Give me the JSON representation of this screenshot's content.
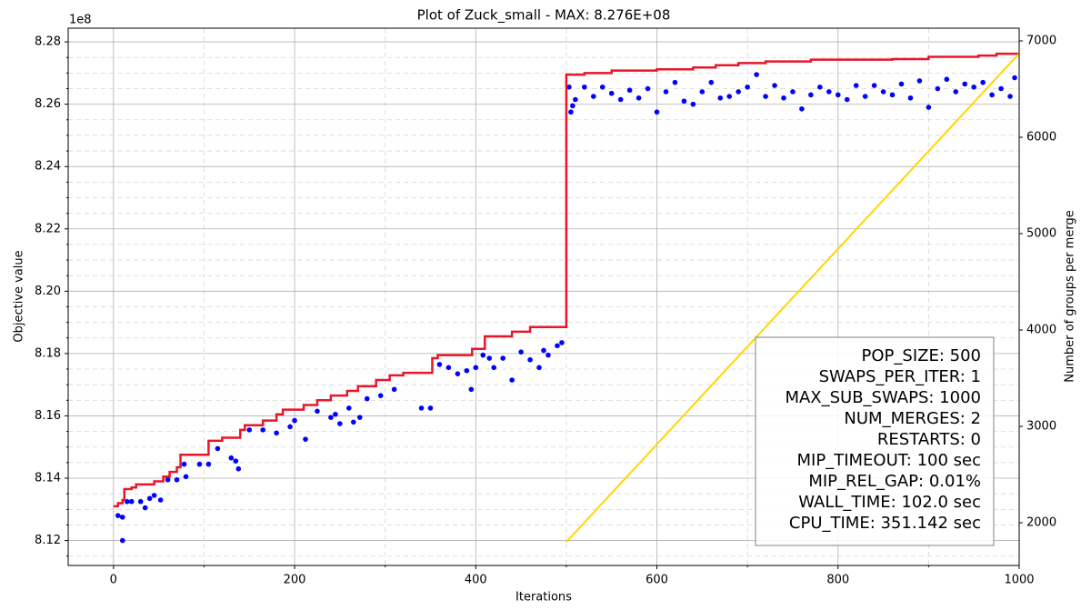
{
  "chart_data": {
    "type": "scatter",
    "title": "Plot of Zuck_small - MAX: 8.276E+08",
    "xlabel": "Iterations",
    "ylabel": "Objective value",
    "y2label": "Number of groups per merge",
    "y_offset_label": "1e8",
    "xlim": [
      -50,
      1000
    ],
    "xticks": [
      0,
      200,
      400,
      600,
      800,
      1000
    ],
    "ylim": [
      8.112,
      8.2844
    ],
    "yticks": [
      8.12,
      8.14,
      8.16,
      8.18,
      {
        "value": 8.2,
        "label": "8.20"
      },
      8.22,
      8.24,
      8.26,
      8.28
    ],
    "y2lim": [
      1557,
      7132
    ],
    "y2ticks": [
      2000,
      3000,
      4000,
      5000,
      6000,
      7000
    ],
    "grid": true,
    "minor_grid": true,
    "xminor_divisions": 2,
    "yminor_divisions": 4,
    "scatter": {
      "color": "#0000ff",
      "x": [
        5,
        10,
        10,
        15,
        20,
        30,
        35,
        40,
        45,
        52,
        60,
        70,
        78,
        80,
        95,
        105,
        115,
        130,
        135,
        138,
        150,
        165,
        180,
        195,
        200,
        212,
        225,
        240,
        245,
        250,
        260,
        265,
        272,
        280,
        295,
        310,
        340,
        350,
        360,
        370,
        380,
        390,
        395,
        400,
        408,
        415,
        420,
        430,
        440,
        450,
        460,
        470,
        475,
        480,
        490,
        495,
        503,
        505,
        507,
        510,
        520,
        530,
        540,
        550,
        560,
        570,
        580,
        590,
        600,
        610,
        620,
        630,
        640,
        650,
        660,
        670,
        680,
        690,
        700,
        710,
        720,
        730,
        740,
        750,
        760,
        770,
        780,
        790,
        800,
        810,
        820,
        830,
        840,
        850,
        860,
        870,
        880,
        890,
        900,
        910,
        920,
        930,
        940,
        950,
        960,
        970,
        980,
        990,
        995
      ],
      "values": [
        8.128,
        8.1275,
        8.12,
        8.1325,
        8.1325,
        8.1325,
        8.1305,
        8.1335,
        8.1345,
        8.133,
        8.1395,
        8.1395,
        8.1445,
        8.1405,
        8.1445,
        8.1445,
        8.1495,
        8.1465,
        8.1455,
        8.143,
        8.1555,
        8.1555,
        8.1545,
        8.1565,
        8.1585,
        8.1525,
        8.1615,
        8.1595,
        8.1605,
        8.1575,
        8.1625,
        8.158,
        8.1595,
        8.1655,
        8.1665,
        8.1685,
        8.1625,
        8.1625,
        8.1765,
        8.1755,
        8.1735,
        8.1745,
        8.1685,
        8.1755,
        8.1795,
        8.1785,
        8.1755,
        8.1785,
        8.1715,
        8.1805,
        8.178,
        8.1755,
        8.181,
        8.1795,
        8.1825,
        8.1835,
        8.2655,
        8.2575,
        8.2595,
        8.2615,
        8.2655,
        8.2625,
        8.2655,
        8.2635,
        8.2615,
        8.2645,
        8.262,
        8.265,
        8.2575,
        8.264,
        8.267,
        8.261,
        8.26,
        8.264,
        8.267,
        8.262,
        8.2625,
        8.264,
        8.2655,
        8.2695,
        8.2625,
        8.266,
        8.262,
        8.264,
        8.2585,
        8.263,
        8.2655,
        8.264,
        8.263,
        8.2615,
        8.266,
        8.2625,
        8.266,
        8.264,
        8.263,
        8.2665,
        8.262,
        8.2675,
        8.259,
        8.265,
        8.268,
        8.264,
        8.2665,
        8.2655,
        8.267,
        8.263,
        8.265,
        8.2625,
        8.2685
      ]
    },
    "best_line": {
      "color": "#e8162b",
      "x": [
        0,
        5,
        5,
        10,
        10,
        12,
        12,
        20,
        20,
        25,
        25,
        45,
        45,
        55,
        55,
        62,
        62,
        70,
        70,
        74,
        74,
        105,
        105,
        120,
        120,
        140,
        140,
        145,
        145,
        165,
        165,
        180,
        180,
        187,
        187,
        210,
        210,
        225,
        225,
        240,
        240,
        258,
        258,
        270,
        270,
        290,
        290,
        305,
        305,
        320,
        320,
        352,
        352,
        358,
        358,
        396,
        396,
        410,
        410,
        440,
        440,
        460,
        460,
        500,
        500,
        520,
        520,
        550,
        550,
        600,
        600,
        640,
        640,
        665,
        665,
        690,
        690,
        720,
        720,
        770,
        770,
        860,
        860,
        900,
        900,
        955,
        955,
        975,
        975,
        1000
      ],
      "values": [
        8.131,
        8.131,
        8.132,
        8.132,
        8.133,
        8.133,
        8.1365,
        8.1365,
        8.137,
        8.137,
        8.138,
        8.138,
        8.139,
        8.139,
        8.1405,
        8.1405,
        8.142,
        8.142,
        8.1435,
        8.1435,
        8.1475,
        8.1475,
        8.152,
        8.152,
        8.153,
        8.153,
        8.1555,
        8.1555,
        8.157,
        8.157,
        8.1585,
        8.1585,
        8.1605,
        8.1605,
        8.162,
        8.162,
        8.1635,
        8.1635,
        8.165,
        8.165,
        8.1665,
        8.1665,
        8.168,
        8.168,
        8.1695,
        8.1695,
        8.1715,
        8.1715,
        8.173,
        8.173,
        8.1738,
        8.1738,
        8.1785,
        8.1785,
        8.1795,
        8.1795,
        8.1815,
        8.1815,
        8.1855,
        8.1855,
        8.187,
        8.187,
        8.1885,
        8.1885,
        8.2695,
        8.2695,
        8.27,
        8.27,
        8.2708,
        8.2708,
        8.2712,
        8.2712,
        8.2718,
        8.2718,
        8.2725,
        8.2725,
        8.2732,
        8.2732,
        8.2737,
        8.2737,
        8.2743,
        8.2743,
        8.2745,
        8.2745,
        8.2752,
        8.2752,
        8.2756,
        8.2756,
        8.2762,
        8.2762
      ]
    },
    "merge_line": {
      "color": "#ffd700",
      "axis": "y2",
      "x": [
        500,
        1000
      ],
      "values": [
        1800,
        6870
      ]
    },
    "info_box": [
      "POP_SIZE: 500",
      "SWAPS_PER_ITER: 1",
      "MAX_SUB_SWAPS: 1000",
      "NUM_MERGES: 2",
      "RESTARTS: 0",
      "MIP_TIMEOUT: 100 sec",
      "MIP_REL_GAP: 0.01%",
      "WALL_TIME: 102.0 sec",
      "CPU_TIME: 351.142 sec"
    ]
  }
}
